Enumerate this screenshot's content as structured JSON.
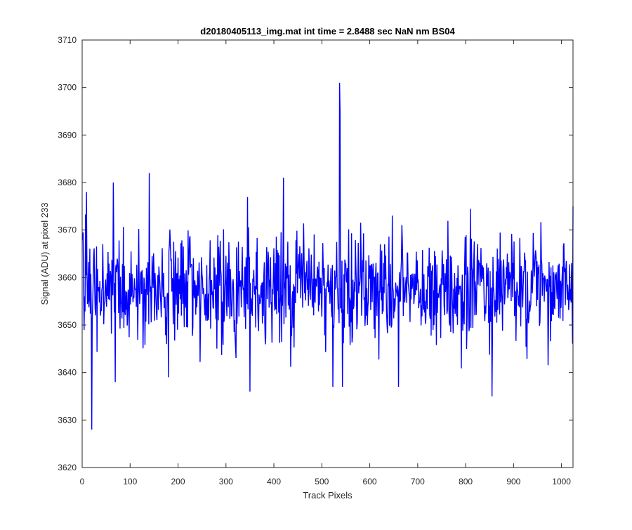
{
  "chart_data": {
    "type": "line",
    "title": "d20180405113_img.mat int time = 2.8488 sec  NaN nm BS04",
    "xlabel": "Track Pixels",
    "ylabel": "Signal (ADU) at pixel 233",
    "xlim": [
      0,
      1024
    ],
    "ylim": [
      3620,
      3710
    ],
    "xticks": [
      0,
      100,
      200,
      300,
      400,
      500,
      600,
      700,
      800,
      900,
      1000
    ],
    "yticks": [
      3620,
      3630,
      3640,
      3650,
      3660,
      3670,
      3680,
      3690,
      3700,
      3710
    ],
    "xtick_labels": [
      "0",
      "100",
      "200",
      "300",
      "400",
      "500",
      "600",
      "700",
      "800",
      "900",
      "1000"
    ],
    "ytick_labels": [
      "3620",
      "3630",
      "3640",
      "3650",
      "3660",
      "3670",
      "3680",
      "3690",
      "3700",
      "3710"
    ],
    "grid": false,
    "series": [
      {
        "color": "#0000ff",
        "x_start": 1,
        "x_step": 1,
        "count": 1024,
        "baseline": 3658,
        "noise_sd": 5.5,
        "seed": 20180405,
        "notable_points": [
          {
            "x": 9,
            "y": 3678
          },
          {
            "x": 20,
            "y": 3628
          },
          {
            "x": 65,
            "y": 3680
          },
          {
            "x": 69,
            "y": 3638
          },
          {
            "x": 140,
            "y": 3682
          },
          {
            "x": 180,
            "y": 3639
          },
          {
            "x": 350,
            "y": 3636
          },
          {
            "x": 420,
            "y": 3681
          },
          {
            "x": 523,
            "y": 3637
          },
          {
            "x": 537,
            "y": 3701
          },
          {
            "x": 538,
            "y": 3695
          },
          {
            "x": 543,
            "y": 3637
          },
          {
            "x": 660,
            "y": 3637
          },
          {
            "x": 855,
            "y": 3635
          },
          {
            "x": 1024,
            "y": 3675
          }
        ]
      }
    ]
  }
}
